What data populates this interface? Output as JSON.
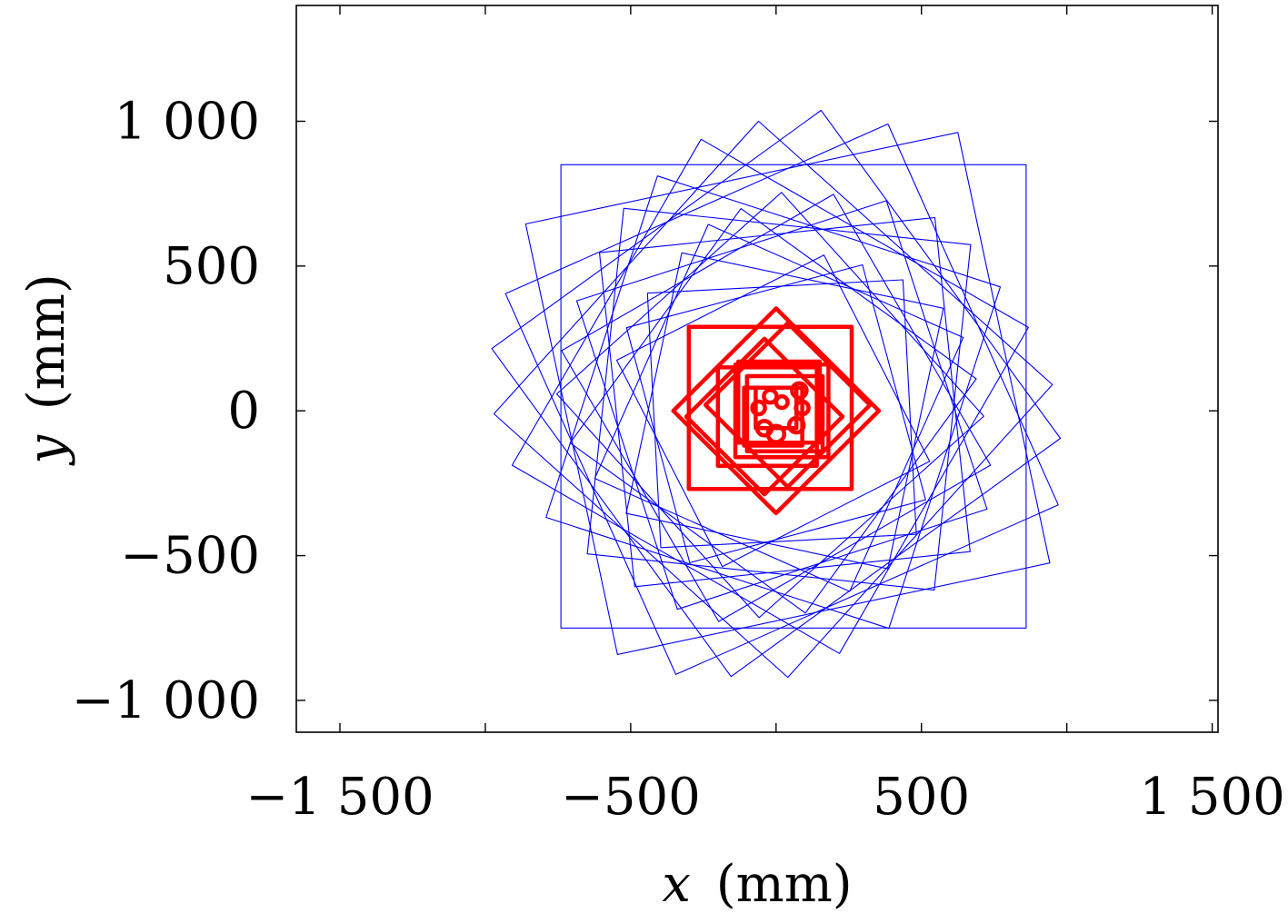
{
  "chart_data": {
    "type": "line",
    "xlabel_var": "x",
    "xlabel_unit": "(mm)",
    "ylabel_var": "y",
    "ylabel_unit": "(mm)",
    "xlim": [
      -1650,
      1520
    ],
    "ylim": [
      -1110,
      1400
    ],
    "xticks": [
      -1500,
      -1000,
      -500,
      0,
      500,
      1000,
      1500
    ],
    "xtick_labels": [
      "−1 500",
      "",
      "−500",
      "",
      "500",
      "",
      "1 500"
    ],
    "yticks": [
      -1000,
      -500,
      0,
      500,
      1000
    ],
    "ytick_labels": [
      "−1 000",
      "−500",
      "0",
      "500",
      "1 000"
    ],
    "grid": false,
    "series": [
      {
        "color": "#0000ff",
        "style": "thin",
        "squares": [
          {
            "cx": 60,
            "cy": 50,
            "half": 800,
            "angle": 0
          },
          {
            "cx": 40,
            "cy": 60,
            "half": 760,
            "angle": 12
          },
          {
            "cx": 20,
            "cy": 40,
            "half": 720,
            "angle": 24
          },
          {
            "cx": 0,
            "cy": 60,
            "half": 700,
            "angle": 36
          },
          {
            "cx": -10,
            "cy": 40,
            "half": 680,
            "angle": 48
          },
          {
            "cx": -20,
            "cy": 50,
            "half": 650,
            "angle": 60
          },
          {
            "cx": -10,
            "cy": 30,
            "half": 620,
            "angle": 72
          },
          {
            "cx": 10,
            "cy": 40,
            "half": 600,
            "angle": 84
          },
          {
            "cx": 30,
            "cy": 30,
            "half": 580,
            "angle": 6
          },
          {
            "cx": 20,
            "cy": 20,
            "half": 560,
            "angle": 18
          },
          {
            "cx": 0,
            "cy": 10,
            "half": 540,
            "angle": 30
          },
          {
            "cx": -20,
            "cy": 20,
            "half": 520,
            "angle": 42
          },
          {
            "cx": -10,
            "cy": 0,
            "half": 500,
            "angle": 54
          },
          {
            "cx": 10,
            "cy": 10,
            "half": 480,
            "angle": 66
          },
          {
            "cx": 30,
            "cy": 0,
            "half": 460,
            "angle": 78
          },
          {
            "cx": 20,
            "cy": -10,
            "half": 440,
            "angle": 3
          },
          {
            "cx": 0,
            "cy": -10,
            "half": 420,
            "angle": 15
          },
          {
            "cx": -10,
            "cy": 0,
            "half": 400,
            "angle": 27
          }
        ]
      },
      {
        "color": "#ff0000",
        "style": "thick",
        "squares": [
          {
            "cx": 0,
            "cy": 0,
            "half": 250,
            "angle": 45
          },
          {
            "cx": 40,
            "cy": 20,
            "half": 200,
            "angle": 45
          },
          {
            "cx": -40,
            "cy": -20,
            "half": 190,
            "angle": 45
          },
          {
            "cx": -20,
            "cy": 10,
            "half": 280,
            "angle": 0
          },
          {
            "cx": 10,
            "cy": 30,
            "half": 140,
            "angle": 0
          },
          {
            "cx": 30,
            "cy": -10,
            "half": 130,
            "angle": 0
          },
          {
            "cx": -10,
            "cy": -20,
            "half": 100,
            "angle": 0
          },
          {
            "cx": 0,
            "cy": 10,
            "half": 70,
            "angle": 0
          },
          {
            "cx": -30,
            "cy": -20,
            "half": 170,
            "angle": 0
          },
          {
            "cx": 20,
            "cy": 0,
            "half": 160,
            "angle": 0
          }
        ],
        "circles": [
          {
            "cx": -40,
            "cy": -60,
            "r": 25
          },
          {
            "cx": 0,
            "cy": -80,
            "r": 28
          },
          {
            "cx": 70,
            "cy": -50,
            "r": 25
          },
          {
            "cx": 90,
            "cy": 10,
            "r": 22
          },
          {
            "cx": 80,
            "cy": 70,
            "r": 25
          },
          {
            "cx": -20,
            "cy": 50,
            "r": 22
          },
          {
            "cx": -60,
            "cy": 10,
            "r": 22
          },
          {
            "cx": 20,
            "cy": 30,
            "r": 20
          }
        ]
      }
    ]
  }
}
